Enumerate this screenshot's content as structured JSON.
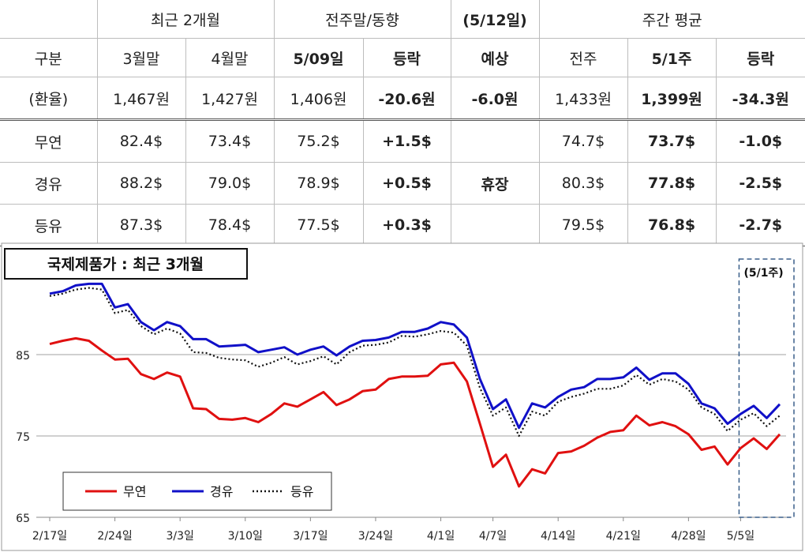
{
  "table": {
    "header": {
      "group_recent": "최근 2개월",
      "group_prev_week": "전주말/동향",
      "forecast_date": "(5/12일)",
      "group_weekly_avg": "주간 평균",
      "col_category": "구분",
      "col_mar_end": "3월말",
      "col_apr_end": "4월말",
      "col_date": "5/09일",
      "col_change": "등락",
      "col_forecast": "예상",
      "col_prev_week": "전주",
      "col_week": "5/1주",
      "col_change2": "등락"
    },
    "rows": [
      {
        "label": "(환율)",
        "mar": "1,467원",
        "apr": "1,427원",
        "date": "1,406원",
        "change": "-20.6원",
        "forecast": "-6.0원",
        "prev": "1,433원",
        "week": "1,399원",
        "change2": "-34.3원"
      },
      {
        "label": "무연",
        "mar": "82.4$",
        "apr": "73.4$",
        "date": "75.2$",
        "change": "+1.5$",
        "forecast": "",
        "prev": "74.7$",
        "week": "73.7$",
        "change2": "-1.0$"
      },
      {
        "label": "경유",
        "mar": "88.2$",
        "apr": "79.0$",
        "date": "78.9$",
        "change": "+0.5$",
        "forecast": "휴장",
        "prev": "80.3$",
        "week": "77.8$",
        "change2": "-2.5$"
      },
      {
        "label": "등유",
        "mar": "87.3$",
        "apr": "78.4$",
        "date": "77.5$",
        "change": "+0.3$",
        "forecast": "",
        "prev": "79.5$",
        "week": "76.8$",
        "change2": "-2.7$"
      }
    ]
  },
  "chart_data": {
    "type": "line",
    "title": "국제제품가 : 최근 3개월",
    "annotation": "(5/1주)",
    "xlabel": "",
    "ylabel": "",
    "ylim": [
      65,
      95
    ],
    "yticks": [
      "65",
      "75",
      "85"
    ],
    "x_tick_labels": [
      "2/17일",
      "2/24일",
      "3/3일",
      "3/10일",
      "3/17일",
      "3/24일",
      "4/1일",
      "4/7일",
      "4/14일",
      "4/21일",
      "4/28일",
      "5/5일"
    ],
    "x_tick_index": [
      0,
      5,
      10,
      15,
      20,
      25,
      30,
      34,
      39,
      44,
      49,
      53
    ],
    "grid": true,
    "legend_position": "bottom-left",
    "highlight_range": [
      53,
      57
    ],
    "series": [
      {
        "name": "무연",
        "color": "#e01010",
        "style": "solid",
        "values": [
          86.3,
          86.7,
          87.0,
          86.7,
          85.5,
          84.4,
          84.5,
          82.6,
          82.0,
          82.8,
          82.3,
          78.4,
          78.3,
          77.1,
          77.0,
          77.2,
          76.7,
          77.7,
          79.0,
          78.6,
          79.5,
          80.4,
          78.8,
          79.5,
          80.5,
          80.7,
          82.0,
          82.3,
          82.3,
          82.4,
          83.8,
          84.0,
          81.7,
          76.5,
          71.2,
          72.7,
          68.8,
          70.9,
          70.4,
          72.9,
          73.1,
          73.8,
          74.8,
          75.5,
          75.7,
          77.5,
          76.3,
          76.7,
          76.2,
          75.2,
          73.3,
          73.7,
          71.5,
          73.5,
          74.7,
          73.4,
          75.2
        ]
      },
      {
        "name": "경유",
        "color": "#1010c8",
        "style": "solid",
        "values": [
          92.5,
          92.8,
          93.5,
          93.7,
          93.7,
          90.8,
          91.2,
          89.0,
          88.0,
          89.0,
          88.5,
          86.9,
          86.9,
          86.0,
          86.1,
          86.2,
          85.3,
          85.6,
          85.9,
          85.0,
          85.6,
          86.0,
          84.9,
          86.0,
          86.7,
          86.8,
          87.1,
          87.8,
          87.8,
          88.2,
          89.0,
          88.7,
          87.1,
          82.0,
          78.3,
          79.5,
          76.0,
          79.0,
          78.5,
          79.8,
          80.7,
          81.0,
          82.0,
          82.0,
          82.2,
          83.4,
          81.9,
          82.7,
          82.7,
          81.4,
          79.0,
          78.4,
          76.5,
          77.7,
          78.7,
          77.2,
          78.9
        ]
      },
      {
        "name": "등유",
        "color": "#111111",
        "style": "dotted",
        "values": [
          92.2,
          92.5,
          93.0,
          93.2,
          93.0,
          90.1,
          90.5,
          88.5,
          87.5,
          88.2,
          87.6,
          85.3,
          85.2,
          84.6,
          84.4,
          84.3,
          83.5,
          84.0,
          84.7,
          83.8,
          84.2,
          84.8,
          83.8,
          85.3,
          86.1,
          86.2,
          86.5,
          87.3,
          87.2,
          87.5,
          87.9,
          87.7,
          86.1,
          80.9,
          77.5,
          78.5,
          75.0,
          78.0,
          77.5,
          79.2,
          79.8,
          80.2,
          80.8,
          80.8,
          81.2,
          82.5,
          81.3,
          82.0,
          81.7,
          80.7,
          78.5,
          77.7,
          75.6,
          77.0,
          77.8,
          76.2,
          77.5
        ]
      }
    ]
  }
}
